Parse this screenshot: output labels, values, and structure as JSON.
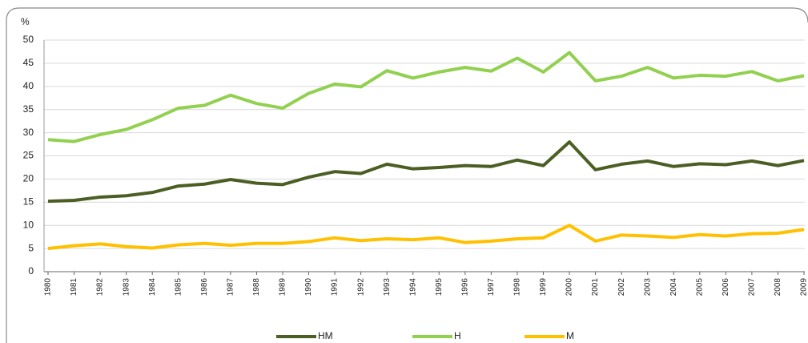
{
  "chart_data": {
    "type": "line",
    "y_label": "%",
    "categories": [
      "1980",
      "1981",
      "1982",
      "1983",
      "1984",
      "1985",
      "1986",
      "1987",
      "1988",
      "1989",
      "1990",
      "1991",
      "1992",
      "1993",
      "1994",
      "1995",
      "1996",
      "1997",
      "1998",
      "1999",
      "2000",
      "2001",
      "2002",
      "2003",
      "2004",
      "2005",
      "2006",
      "2007",
      "2008",
      "2009"
    ],
    "series": [
      {
        "name": "HM",
        "color": "#4b5f24",
        "values": [
          15.2,
          15.4,
          16.1,
          16.4,
          17.1,
          18.5,
          18.9,
          19.9,
          19.1,
          18.8,
          20.4,
          21.6,
          21.2,
          23.2,
          22.2,
          22.5,
          22.9,
          22.7,
          24.1,
          22.9,
          28.0,
          22.0,
          23.2,
          23.9,
          22.7,
          23.3,
          23.1,
          23.9,
          22.9,
          24.0
        ]
      },
      {
        "name": "H",
        "color": "#92d050",
        "values": [
          28.5,
          28.1,
          29.6,
          30.7,
          32.8,
          35.3,
          35.9,
          38.1,
          36.3,
          35.3,
          38.5,
          40.5,
          39.9,
          43.4,
          41.8,
          43.1,
          44.1,
          43.3,
          46.1,
          43.1,
          47.3,
          41.2,
          42.2,
          44.1,
          41.8,
          42.4,
          42.2,
          43.2,
          41.2,
          42.3
        ]
      },
      {
        "name": "M",
        "color": "#ffc000",
        "values": [
          5.0,
          5.6,
          6.0,
          5.4,
          5.1,
          5.8,
          6.1,
          5.7,
          6.1,
          6.1,
          6.5,
          7.3,
          6.7,
          7.1,
          6.9,
          7.3,
          6.3,
          6.6,
          7.1,
          7.3,
          10.0,
          6.6,
          7.9,
          7.7,
          7.4,
          8.0,
          7.7,
          8.2,
          8.3,
          9.1
        ]
      }
    ],
    "ylim": [
      0,
      50
    ],
    "yticks": [
      0,
      5,
      10,
      15,
      20,
      25,
      30,
      35,
      40,
      45,
      50
    ],
    "grid": true,
    "legend": "bottom"
  }
}
